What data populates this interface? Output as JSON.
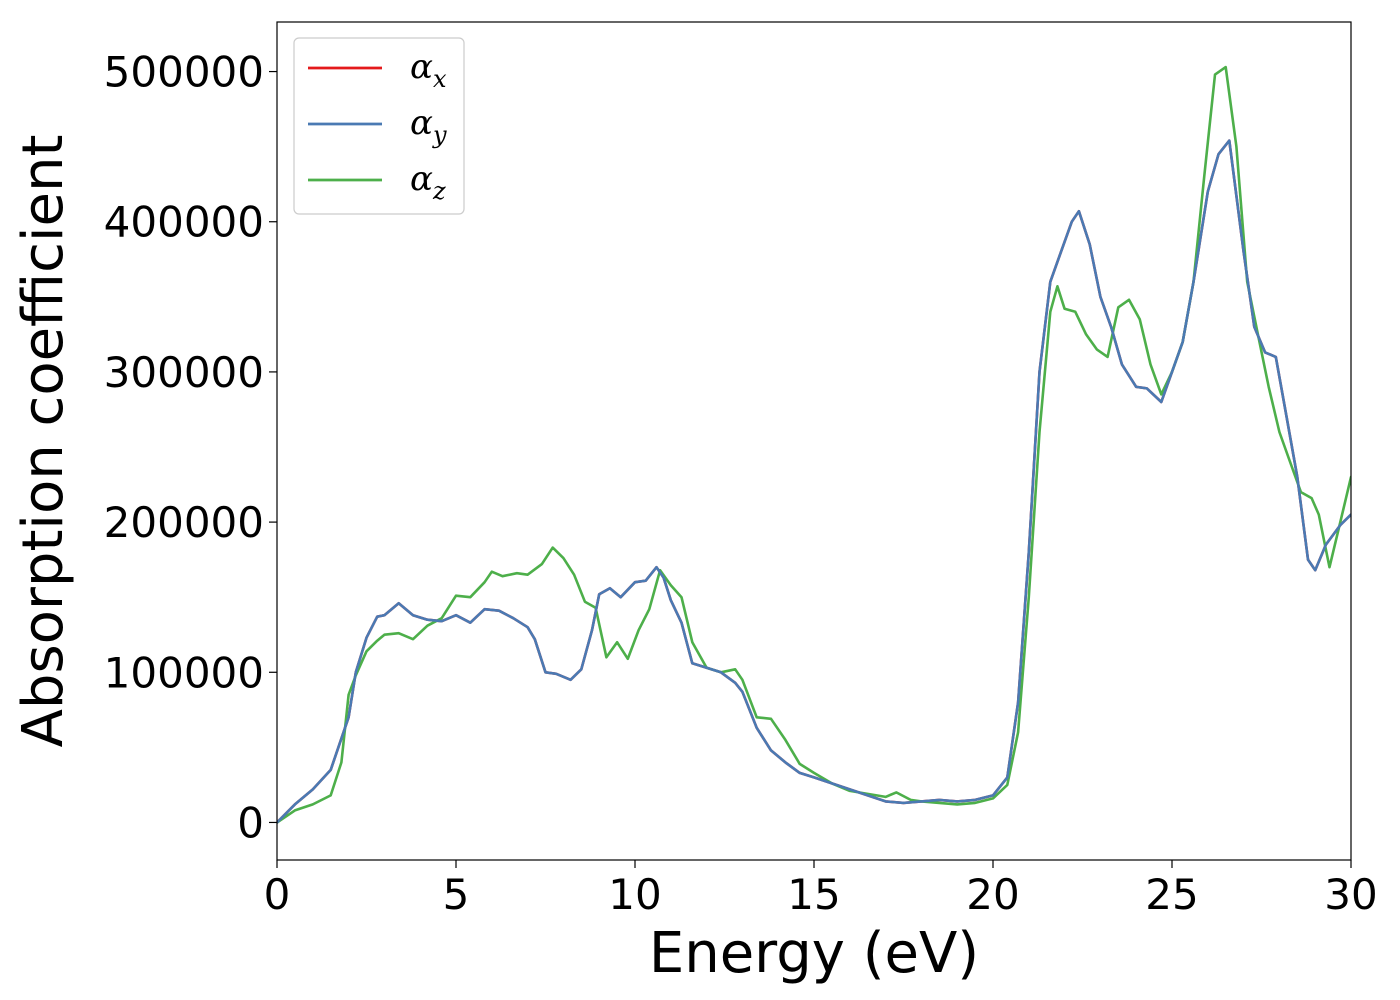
{
  "chart_data": {
    "type": "line",
    "xlabel": "Energy (eV)",
    "ylabel": "Absorption coefficient",
    "xlim": [
      0,
      30
    ],
    "ylim": [
      -25000,
      533000
    ],
    "xticks": [
      0,
      5,
      10,
      15,
      20,
      25,
      30
    ],
    "xtick_labels": [
      "0",
      "5",
      "10",
      "15",
      "20",
      "25",
      "30"
    ],
    "yticks": [
      0,
      100000,
      200000,
      300000,
      400000,
      500000
    ],
    "ytick_labels": [
      "0",
      "100000",
      "200000",
      "300000",
      "400000",
      "500000"
    ],
    "grid": false,
    "legend": "top-left",
    "series": [
      {
        "name": "α",
        "subscript": "x",
        "color": "#e41a1c",
        "x": [
          0,
          0.5,
          1,
          1.5,
          2,
          2.2,
          2.5,
          2.8,
          3,
          3.4,
          3.8,
          4.2,
          4.6,
          5,
          5.4,
          5.8,
          6.2,
          6.6,
          7,
          7.2,
          7.5,
          7.8,
          8.2,
          8.5,
          8.8,
          9,
          9.3,
          9.6,
          10,
          10.3,
          10.6,
          10.8,
          11,
          11.3,
          11.6,
          12,
          12.4,
          12.8,
          13,
          13.4,
          13.8,
          14.2,
          14.6,
          15,
          15.5,
          16,
          16.5,
          17,
          17.5,
          18,
          18.5,
          19,
          19.5,
          20,
          20.4,
          20.7,
          21,
          21.3,
          21.6,
          21.9,
          22.2,
          22.4,
          22.7,
          23,
          23.3,
          23.6,
          24,
          24.3,
          24.7,
          25,
          25.3,
          25.6,
          26,
          26.3,
          26.6,
          27,
          27.3,
          27.6,
          27.9,
          28.2,
          28.5,
          28.8,
          29,
          29.3,
          29.7,
          30
        ],
        "y": [
          0,
          12000,
          22000,
          35000,
          70000,
          100000,
          123000,
          137000,
          138000,
          146000,
          138000,
          135000,
          134000,
          138000,
          133000,
          142000,
          141000,
          136000,
          130000,
          122000,
          100000,
          99000,
          95000,
          102000,
          128000,
          152000,
          156000,
          150000,
          160000,
          161000,
          170000,
          163000,
          148000,
          133000,
          106000,
          103000,
          100000,
          93000,
          87000,
          63000,
          48000,
          40000,
          33000,
          30000,
          26000,
          22000,
          18000,
          14000,
          13000,
          14000,
          15000,
          14000,
          15000,
          18000,
          30000,
          80000,
          180000,
          300000,
          360000,
          380000,
          400000,
          407000,
          385000,
          350000,
          330000,
          305000,
          290000,
          289000,
          280000,
          300000,
          320000,
          360000,
          420000,
          445000,
          454000,
          380000,
          330000,
          313000,
          310000,
          270000,
          230000,
          175000,
          168000,
          185000,
          198000,
          205000
        ]
      },
      {
        "name": "α",
        "subscript": "y",
        "color": "#4a7ab3",
        "x": [
          0,
          0.5,
          1,
          1.5,
          2,
          2.2,
          2.5,
          2.8,
          3,
          3.4,
          3.8,
          4.2,
          4.6,
          5,
          5.4,
          5.8,
          6.2,
          6.6,
          7,
          7.2,
          7.5,
          7.8,
          8.2,
          8.5,
          8.8,
          9,
          9.3,
          9.6,
          10,
          10.3,
          10.6,
          10.8,
          11,
          11.3,
          11.6,
          12,
          12.4,
          12.8,
          13,
          13.4,
          13.8,
          14.2,
          14.6,
          15,
          15.5,
          16,
          16.5,
          17,
          17.5,
          18,
          18.5,
          19,
          19.5,
          20,
          20.4,
          20.7,
          21,
          21.3,
          21.6,
          21.9,
          22.2,
          22.4,
          22.7,
          23,
          23.3,
          23.6,
          24,
          24.3,
          24.7,
          25,
          25.3,
          25.6,
          26,
          26.3,
          26.6,
          27,
          27.3,
          27.6,
          27.9,
          28.2,
          28.5,
          28.8,
          29,
          29.3,
          29.7,
          30
        ],
        "y": [
          0,
          12000,
          22000,
          35000,
          70000,
          100000,
          123000,
          137000,
          138000,
          146000,
          138000,
          135000,
          134000,
          138000,
          133000,
          142000,
          141000,
          136000,
          130000,
          122000,
          100000,
          99000,
          95000,
          102000,
          128000,
          152000,
          156000,
          150000,
          160000,
          161000,
          170000,
          163000,
          148000,
          133000,
          106000,
          103000,
          100000,
          93000,
          87000,
          63000,
          48000,
          40000,
          33000,
          30000,
          26000,
          22000,
          18000,
          14000,
          13000,
          14000,
          15000,
          14000,
          15000,
          18000,
          30000,
          80000,
          180000,
          300000,
          360000,
          380000,
          400000,
          407000,
          385000,
          350000,
          330000,
          305000,
          290000,
          289000,
          280000,
          300000,
          320000,
          360000,
          420000,
          445000,
          454000,
          380000,
          330000,
          313000,
          310000,
          270000,
          230000,
          175000,
          168000,
          185000,
          198000,
          205000
        ]
      },
      {
        "name": "α",
        "subscript": "z",
        "color": "#4daf4a",
        "x": [
          0,
          0.5,
          1,
          1.5,
          1.8,
          2,
          2.2,
          2.5,
          2.8,
          3,
          3.4,
          3.8,
          4.2,
          4.6,
          5,
          5.4,
          5.8,
          6,
          6.3,
          6.7,
          7,
          7.4,
          7.7,
          8,
          8.3,
          8.6,
          8.9,
          9.2,
          9.5,
          9.8,
          10.1,
          10.4,
          10.7,
          11,
          11.3,
          11.6,
          12,
          12.4,
          12.8,
          13,
          13.4,
          13.8,
          14.2,
          14.6,
          15,
          15.5,
          16,
          16.5,
          17,
          17.3,
          17.7,
          18,
          18.5,
          19,
          19.5,
          20,
          20.4,
          20.7,
          21,
          21.3,
          21.6,
          21.8,
          22,
          22.3,
          22.6,
          22.9,
          23.2,
          23.5,
          23.8,
          24.1,
          24.4,
          24.7,
          25,
          25.3,
          25.6,
          25.9,
          26.2,
          26.5,
          26.8,
          27.1,
          27.4,
          27.7,
          28,
          28.3,
          28.6,
          28.9,
          29.1,
          29.4,
          29.7,
          30
        ],
        "y": [
          0,
          8000,
          12000,
          18000,
          40000,
          85000,
          98000,
          114000,
          121000,
          125000,
          126000,
          122000,
          131000,
          136000,
          151000,
          150000,
          160000,
          167000,
          164000,
          166000,
          165000,
          172000,
          183000,
          176000,
          165000,
          147000,
          143000,
          110000,
          120000,
          109000,
          128000,
          142000,
          168000,
          158000,
          150000,
          120000,
          103000,
          100000,
          102000,
          95000,
          70000,
          69000,
          55000,
          39000,
          33000,
          26000,
          21000,
          19000,
          17000,
          20000,
          15000,
          14000,
          13000,
          12000,
          13000,
          16000,
          25000,
          60000,
          150000,
          260000,
          340000,
          357000,
          342000,
          340000,
          325000,
          315000,
          310000,
          343000,
          348000,
          335000,
          305000,
          285000,
          300000,
          320000,
          360000,
          430000,
          498000,
          503000,
          450000,
          360000,
          325000,
          290000,
          260000,
          240000,
          220000,
          216000,
          205000,
          170000,
          200000,
          230000
        ]
      }
    ]
  }
}
